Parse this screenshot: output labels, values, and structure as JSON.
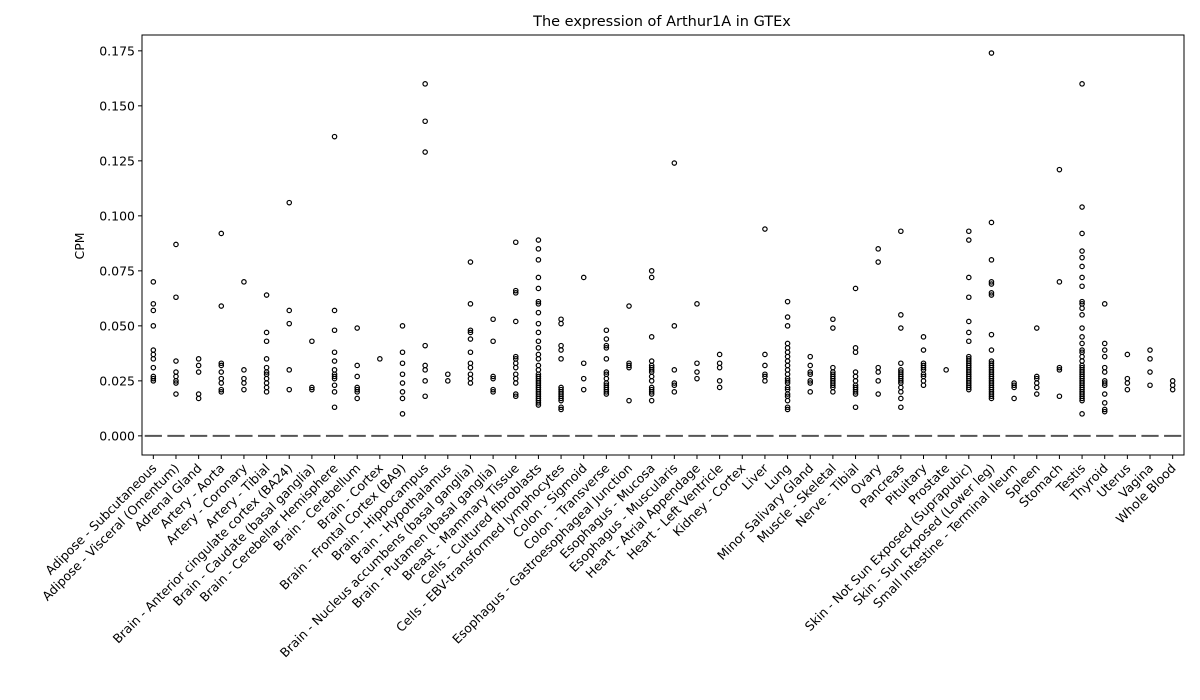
{
  "chart_data": {
    "type": "boxplot",
    "title": "The expression of Arthur1A in GTEx",
    "xlabel": "",
    "ylabel": "CPM",
    "ylim": [
      -0.0087,
      0.1822
    ],
    "yticks": [
      0.0,
      0.025,
      0.05,
      0.075,
      0.1,
      0.125,
      0.15,
      0.175
    ],
    "ytick_labels": [
      "0.000",
      "0.025",
      "0.050",
      "0.075",
      "0.100",
      "0.125",
      "0.150",
      "0.175"
    ],
    "grid": false,
    "legend": "none",
    "median_color": "#555555",
    "outlier_edge_color": "#000000",
    "box_median_value": 0.0,
    "categories": [
      "Adipose - Subcutaneous",
      "Adipose - Visceral (Omentum)",
      "Adrenal Gland",
      "Artery - Aorta",
      "Artery - Coronary",
      "Artery - Tibial",
      "Brain - Anterior cingulate cortex (BA24)",
      "Brain - Caudate (basal ganglia)",
      "Brain - Cerebellar Hemisphere",
      "Brain - Cerebellum",
      "Brain - Cortex",
      "Brain - Frontal Cortex (BA9)",
      "Brain - Hippocampus",
      "Brain - Hypothalamus",
      "Brain - Nucleus accumbens (basal ganglia)",
      "Brain - Putamen (basal ganglia)",
      "Breast - Mammary Tissue",
      "Cells - Cultured fibroblasts",
      "Cells - EBV-transformed lymphocytes",
      "Colon - Sigmoid",
      "Colon - Transverse",
      "Esophagus - Gastroesophageal Junction",
      "Esophagus - Mucosa",
      "Esophagus - Muscularis",
      "Heart - Atrial Appendage",
      "Heart - Left Ventricle",
      "Kidney - Cortex",
      "Liver",
      "Lung",
      "Minor Salivary Gland",
      "Muscle - Skeletal",
      "Nerve - Tibial",
      "Ovary",
      "Pancreas",
      "Pituitary",
      "Prostate",
      "Skin - Not Sun Exposed (Suprapubic)",
      "Skin - Sun Exposed (Lower leg)",
      "Small Intestine - Terminal Ileum",
      "Spleen",
      "Stomach",
      "Testis",
      "Thyroid",
      "Uterus",
      "Vagina",
      "Whole Blood"
    ],
    "outliers": [
      [
        0.07,
        0.06,
        0.057,
        0.05,
        0.039,
        0.037,
        0.035,
        0.031,
        0.027,
        0.026,
        0.025
      ],
      [
        0.087,
        0.063,
        0.034,
        0.029,
        0.027,
        0.025,
        0.024,
        0.019
      ],
      [
        0.035,
        0.032,
        0.029,
        0.019,
        0.017
      ],
      [
        0.092,
        0.059,
        0.033,
        0.032,
        0.029,
        0.026,
        0.024,
        0.021,
        0.02
      ],
      [
        0.07,
        0.03,
        0.026,
        0.024,
        0.021
      ],
      [
        0.064,
        0.047,
        0.043,
        0.035,
        0.031,
        0.029,
        0.028,
        0.026,
        0.024,
        0.022,
        0.02
      ],
      [
        0.106,
        0.057,
        0.051,
        0.03,
        0.021
      ],
      [
        0.043,
        0.022,
        0.021
      ],
      [
        0.136,
        0.057,
        0.048,
        0.038,
        0.034,
        0.03,
        0.028,
        0.027,
        0.026,
        0.023,
        0.02,
        0.013
      ],
      [
        0.049,
        0.032,
        0.027,
        0.022,
        0.021,
        0.02,
        0.017
      ],
      [
        0.035
      ],
      [
        0.05,
        0.038,
        0.033,
        0.028,
        0.024,
        0.02,
        0.017,
        0.01
      ],
      [
        0.16,
        0.143,
        0.129,
        0.041,
        0.032,
        0.03,
        0.025,
        0.018
      ],
      [
        0.028,
        0.025
      ],
      [
        0.079,
        0.06,
        0.048,
        0.047,
        0.044,
        0.038,
        0.033,
        0.031,
        0.028,
        0.026,
        0.024
      ],
      [
        0.053,
        0.043,
        0.027,
        0.026,
        0.021,
        0.02
      ],
      [
        0.088,
        0.066,
        0.065,
        0.052,
        0.036,
        0.035,
        0.033,
        0.031,
        0.028,
        0.026,
        0.024,
        0.019,
        0.018
      ],
      [
        0.089,
        0.085,
        0.08,
        0.072,
        0.067,
        0.061,
        0.06,
        0.056,
        0.051,
        0.047,
        0.043,
        0.04,
        0.037,
        0.035,
        0.032,
        0.03,
        0.028,
        0.027,
        0.026,
        0.025,
        0.024,
        0.023,
        0.022,
        0.021,
        0.02,
        0.019,
        0.018,
        0.017,
        0.016,
        0.015,
        0.014
      ],
      [
        0.053,
        0.051,
        0.041,
        0.039,
        0.035,
        0.022,
        0.021,
        0.02,
        0.019,
        0.018,
        0.017,
        0.016,
        0.013,
        0.012
      ],
      [
        0.072,
        0.033,
        0.026,
        0.021
      ],
      [
        0.048,
        0.044,
        0.041,
        0.04,
        0.035,
        0.029,
        0.028,
        0.026,
        0.024,
        0.023,
        0.022,
        0.021,
        0.02,
        0.019
      ],
      [
        0.059,
        0.033,
        0.032,
        0.031,
        0.016
      ],
      [
        0.075,
        0.072,
        0.045,
        0.034,
        0.032,
        0.031,
        0.03,
        0.029,
        0.027,
        0.025,
        0.022,
        0.021,
        0.02,
        0.019,
        0.016
      ],
      [
        0.124,
        0.05,
        0.03,
        0.024,
        0.023,
        0.02
      ],
      [
        0.06,
        0.033,
        0.029,
        0.026
      ],
      [
        0.037,
        0.033,
        0.031,
        0.025,
        0.022
      ],
      [],
      [
        0.094,
        0.037,
        0.032,
        0.028,
        0.027,
        0.025
      ],
      [
        0.061,
        0.054,
        0.05,
        0.042,
        0.04,
        0.038,
        0.036,
        0.034,
        0.032,
        0.03,
        0.028,
        0.026,
        0.025,
        0.024,
        0.022,
        0.021,
        0.019,
        0.018,
        0.016,
        0.013,
        0.012
      ],
      [
        0.036,
        0.032,
        0.029,
        0.028,
        0.025,
        0.024,
        0.02
      ],
      [
        0.053,
        0.049,
        0.031,
        0.029,
        0.028,
        0.027,
        0.026,
        0.025,
        0.024,
        0.023,
        0.022,
        0.02
      ],
      [
        0.067,
        0.04,
        0.038,
        0.029,
        0.027,
        0.025,
        0.023,
        0.022,
        0.021,
        0.02,
        0.019,
        0.013
      ],
      [
        0.085,
        0.079,
        0.031,
        0.029,
        0.025,
        0.019
      ],
      [
        0.093,
        0.055,
        0.049,
        0.033,
        0.03,
        0.029,
        0.028,
        0.027,
        0.026,
        0.025,
        0.024,
        0.022,
        0.02,
        0.017,
        0.013
      ],
      [
        0.045,
        0.039,
        0.033,
        0.032,
        0.031,
        0.03,
        0.028,
        0.027,
        0.025,
        0.023
      ],
      [
        0.03
      ],
      [
        0.093,
        0.089,
        0.072,
        0.063,
        0.052,
        0.047,
        0.043,
        0.036,
        0.035,
        0.034,
        0.033,
        0.032,
        0.031,
        0.03,
        0.029,
        0.028,
        0.027,
        0.026,
        0.025,
        0.024,
        0.023,
        0.022,
        0.021
      ],
      [
        0.174,
        0.097,
        0.08,
        0.07,
        0.069,
        0.065,
        0.064,
        0.046,
        0.039,
        0.034,
        0.033,
        0.032,
        0.031,
        0.03,
        0.029,
        0.028,
        0.027,
        0.026,
        0.025,
        0.024,
        0.023,
        0.022,
        0.021,
        0.02,
        0.019,
        0.018,
        0.017
      ],
      [
        0.024,
        0.023,
        0.022,
        0.017
      ],
      [
        0.049,
        0.027,
        0.026,
        0.024,
        0.022,
        0.019
      ],
      [
        0.121,
        0.07,
        0.031,
        0.03,
        0.018
      ],
      [
        0.16,
        0.104,
        0.092,
        0.084,
        0.081,
        0.077,
        0.072,
        0.068,
        0.061,
        0.06,
        0.058,
        0.055,
        0.049,
        0.045,
        0.042,
        0.039,
        0.038,
        0.036,
        0.034,
        0.032,
        0.031,
        0.03,
        0.029,
        0.028,
        0.027,
        0.026,
        0.025,
        0.024,
        0.023,
        0.022,
        0.021,
        0.02,
        0.019,
        0.018,
        0.017,
        0.016,
        0.01
      ],
      [
        0.06,
        0.042,
        0.039,
        0.036,
        0.031,
        0.029,
        0.025,
        0.024,
        0.023,
        0.019,
        0.015,
        0.012,
        0.011
      ],
      [
        0.037,
        0.026,
        0.024,
        0.021
      ],
      [
        0.039,
        0.035,
        0.029,
        0.023
      ],
      [
        0.025,
        0.023,
        0.021
      ]
    ]
  }
}
